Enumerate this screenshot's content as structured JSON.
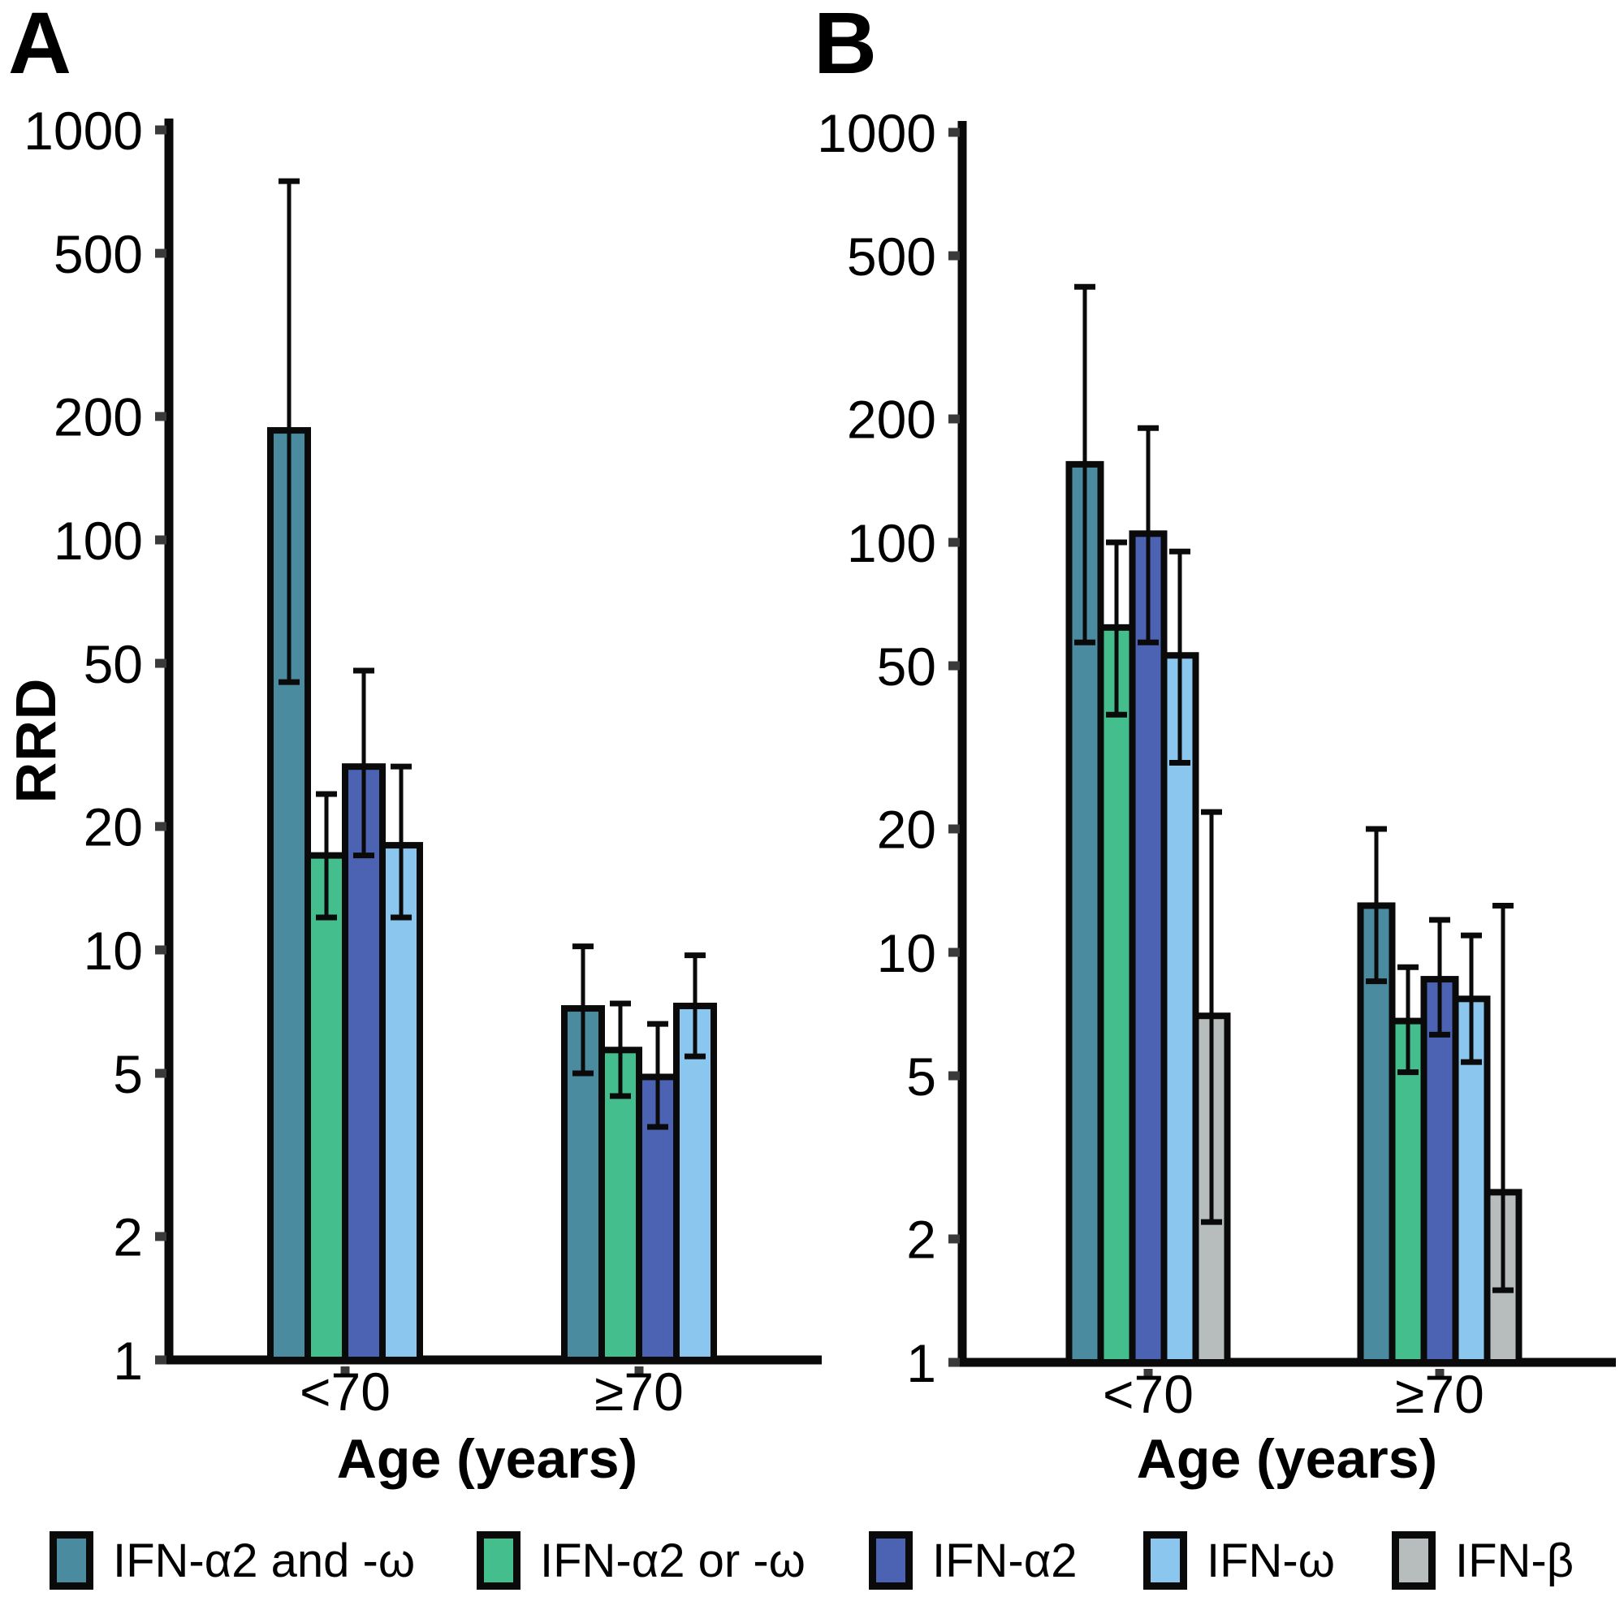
{
  "panel_labels": [
    "A",
    "B"
  ],
  "colors": {
    "teal": "#4A8BA0",
    "green": "#43BE8C",
    "blue": "#4C63B4",
    "lightblue": "#8AC6EE",
    "gray": "#B7BDBD",
    "bar_outline": "#0A0A0A",
    "axis": "#0A0A0A",
    "tick": "#3A3A3A",
    "background": "#FFFFFF",
    "text": "#000000"
  },
  "legend": {
    "items": [
      {
        "label": "IFN-α2 and -ω",
        "color": "teal"
      },
      {
        "label": "IFN-α2 or -ω",
        "color": "green"
      },
      {
        "label": "IFN-α2",
        "color": "blue"
      },
      {
        "label": "IFN-ω",
        "color": "lightblue"
      },
      {
        "label": "IFN-β",
        "color": "gray"
      }
    ]
  },
  "chart_data": [
    {
      "panel": "A",
      "type": "bar",
      "yscale": "log",
      "ylim": [
        1,
        1000
      ],
      "ylabel": "RRD",
      "xlabel": "Age (years)",
      "y_ticks": [
        1000,
        500,
        200,
        100,
        50,
        20,
        10,
        5,
        2,
        1
      ],
      "categories": [
        "<70",
        "≥70"
      ],
      "legend_position": "bottom",
      "grid": false,
      "series": [
        {
          "name": "IFN-α2 and -ω",
          "color": "teal",
          "values": [
            185,
            7.2
          ],
          "ci_low": [
            45,
            5.0
          ],
          "ci_high": [
            750,
            10.2
          ]
        },
        {
          "name": "IFN-α2 or -ω",
          "color": "green",
          "values": [
            17,
            5.7
          ],
          "ci_low": [
            12,
            4.4
          ],
          "ci_high": [
            24,
            7.4
          ]
        },
        {
          "name": "IFN-α2",
          "color": "blue",
          "values": [
            28,
            4.9
          ],
          "ci_low": [
            17,
            3.7
          ],
          "ci_high": [
            48,
            6.6
          ]
        },
        {
          "name": "IFN-ω",
          "color": "lightblue",
          "values": [
            18,
            7.3
          ],
          "ci_low": [
            12,
            5.5
          ],
          "ci_high": [
            28,
            9.7
          ]
        }
      ]
    },
    {
      "panel": "B",
      "type": "bar",
      "yscale": "log",
      "ylim": [
        1,
        1000
      ],
      "ylabel": "RRD",
      "xlabel": "Age (years)",
      "y_ticks": [
        1000,
        500,
        200,
        100,
        50,
        20,
        10,
        5,
        2,
        1
      ],
      "categories": [
        "<70",
        "≥70"
      ],
      "legend_position": "bottom",
      "grid": false,
      "series": [
        {
          "name": "IFN-α2 and -ω",
          "color": "teal",
          "values": [
            155,
            13
          ],
          "ci_low": [
            57,
            8.5
          ],
          "ci_high": [
            420,
            20
          ]
        },
        {
          "name": "IFN-α2 or -ω",
          "color": "green",
          "values": [
            62,
            6.8
          ],
          "ci_low": [
            38,
            5.1
          ],
          "ci_high": [
            100,
            9.2
          ]
        },
        {
          "name": "IFN-α2",
          "color": "blue",
          "values": [
            105,
            8.6
          ],
          "ci_low": [
            57,
            6.3
          ],
          "ci_high": [
            190,
            12
          ]
        },
        {
          "name": "IFN-ω",
          "color": "lightblue",
          "values": [
            53,
            7.7
          ],
          "ci_low": [
            29,
            5.4
          ],
          "ci_high": [
            95,
            11
          ]
        },
        {
          "name": "IFN-β",
          "color": "gray",
          "values": [
            7,
            2.6
          ],
          "ci_low": [
            2.2,
            1.5
          ],
          "ci_high": [
            22,
            13
          ]
        }
      ]
    }
  ]
}
